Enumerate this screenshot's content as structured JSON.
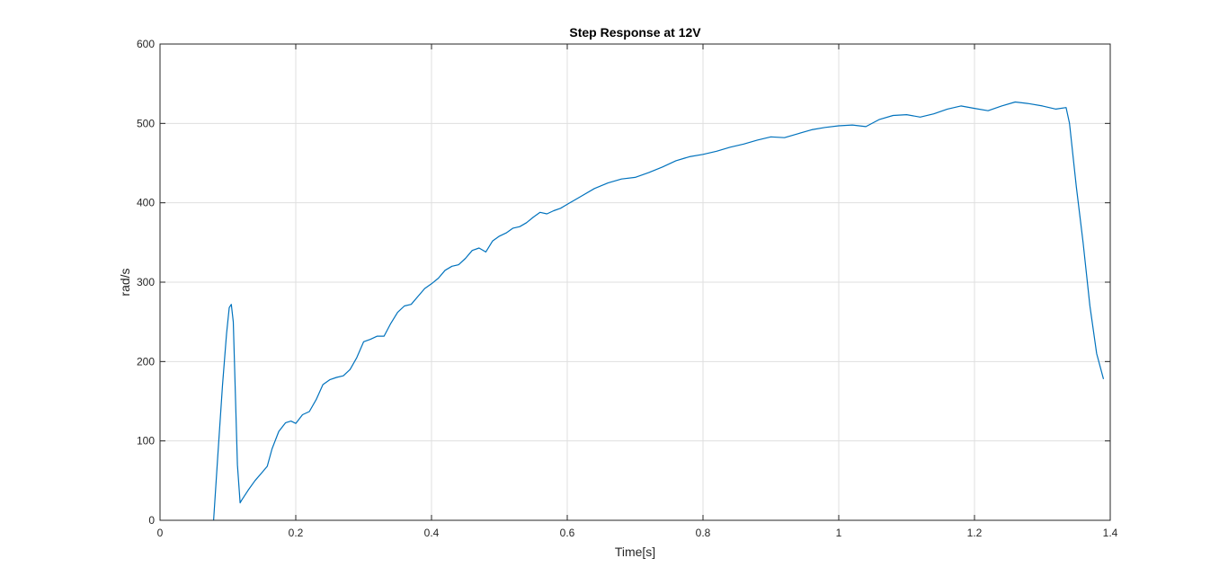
{
  "chart_data": {
    "type": "line",
    "title": "Step Response at 12V",
    "xlabel": "Time[s]",
    "ylabel": "rad/s",
    "xlim": [
      0,
      1.4
    ],
    "ylim": [
      0,
      600
    ],
    "xticks": [
      0,
      0.2,
      0.4,
      0.6,
      0.8,
      1,
      1.2,
      1.4
    ],
    "xtick_labels": [
      "0",
      "0.2",
      "0.4",
      "0.6",
      "0.8",
      "1",
      "1.2",
      "1.4"
    ],
    "yticks": [
      0,
      100,
      200,
      300,
      400,
      500,
      600
    ],
    "ytick_labels": [
      "0",
      "100",
      "200",
      "300",
      "400",
      "500",
      "600"
    ],
    "grid": true,
    "series": [
      {
        "color": "#0072bd",
        "x": [
          0.079,
          0.085,
          0.092,
          0.098,
          0.102,
          0.105,
          0.108,
          0.111,
          0.114,
          0.118,
          0.12,
          0.13,
          0.14,
          0.15,
          0.158,
          0.165,
          0.175,
          0.185,
          0.193,
          0.2,
          0.21,
          0.22,
          0.23,
          0.24,
          0.25,
          0.26,
          0.27,
          0.28,
          0.29,
          0.3,
          0.31,
          0.32,
          0.33,
          0.34,
          0.35,
          0.36,
          0.37,
          0.38,
          0.39,
          0.4,
          0.41,
          0.42,
          0.43,
          0.44,
          0.45,
          0.46,
          0.47,
          0.48,
          0.49,
          0.5,
          0.51,
          0.52,
          0.53,
          0.54,
          0.55,
          0.56,
          0.57,
          0.58,
          0.59,
          0.6,
          0.62,
          0.64,
          0.66,
          0.68,
          0.7,
          0.72,
          0.74,
          0.76,
          0.78,
          0.8,
          0.82,
          0.84,
          0.86,
          0.88,
          0.9,
          0.92,
          0.94,
          0.96,
          0.98,
          1.0,
          1.02,
          1.04,
          1.06,
          1.08,
          1.1,
          1.12,
          1.14,
          1.16,
          1.18,
          1.2,
          1.22,
          1.24,
          1.26,
          1.28,
          1.3,
          1.32,
          1.335,
          1.34,
          1.345,
          1.35,
          1.36,
          1.37,
          1.38,
          1.39
        ],
        "y": [
          0,
          80,
          170,
          235,
          268,
          272,
          250,
          160,
          70,
          22,
          25,
          38,
          50,
          60,
          68,
          90,
          112,
          123,
          125,
          122,
          133,
          137,
          152,
          171,
          177,
          180,
          182,
          190,
          205,
          225,
          228,
          232,
          232,
          248,
          262,
          270,
          272,
          282,
          292,
          298,
          305,
          315,
          320,
          322,
          330,
          340,
          343,
          338,
          352,
          358,
          362,
          368,
          370,
          375,
          382,
          388,
          386,
          390,
          393,
          398,
          408,
          418,
          425,
          430,
          432,
          438,
          445,
          453,
          458,
          461,
          465,
          470,
          474,
          479,
          483,
          482,
          487,
          492,
          495,
          497,
          498,
          496,
          505,
          510,
          511,
          508,
          512,
          518,
          522,
          519,
          516,
          522,
          527,
          525,
          522,
          518,
          520,
          500,
          460,
          420,
          350,
          270,
          210,
          178
        ]
      }
    ]
  }
}
